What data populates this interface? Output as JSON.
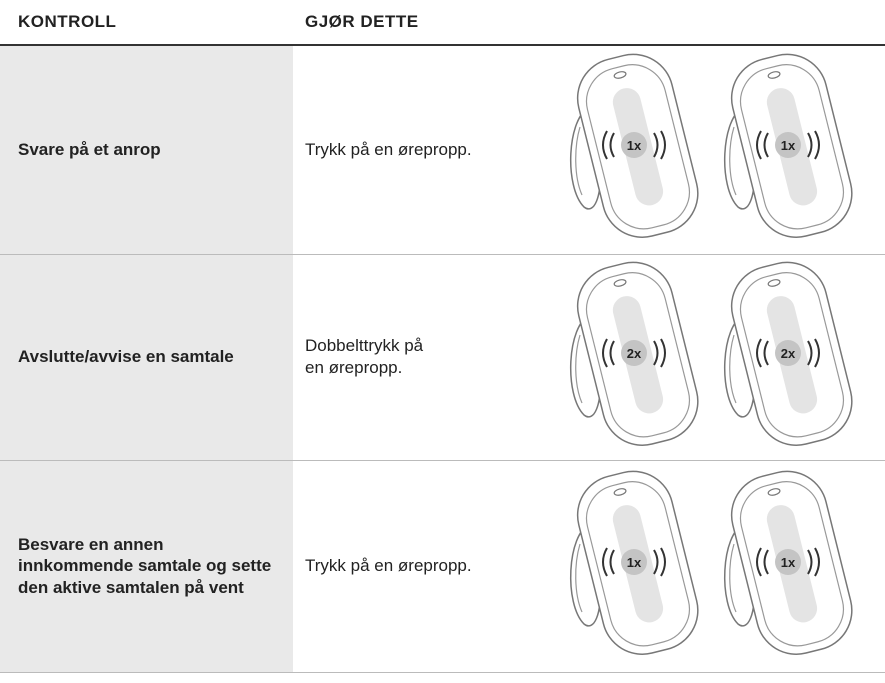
{
  "table": {
    "header": [
      "KONTROLL",
      "GJØR DETTE"
    ],
    "rows": [
      {
        "control": "Svare på et anrop",
        "action": [
          "Trykk på en ørepropp."
        ],
        "badge": "1x"
      },
      {
        "control": "Avslutte/avvise en samtale",
        "action": [
          "Dobbelttrykk på",
          "en ørepropp."
        ],
        "badge": "2x"
      },
      {
        "control": "Besvare en annen innkommende samtale og sette den aktive samtalen på vent",
        "action": [
          "Trykk på en ørepropp."
        ],
        "badge": "1x"
      }
    ]
  }
}
